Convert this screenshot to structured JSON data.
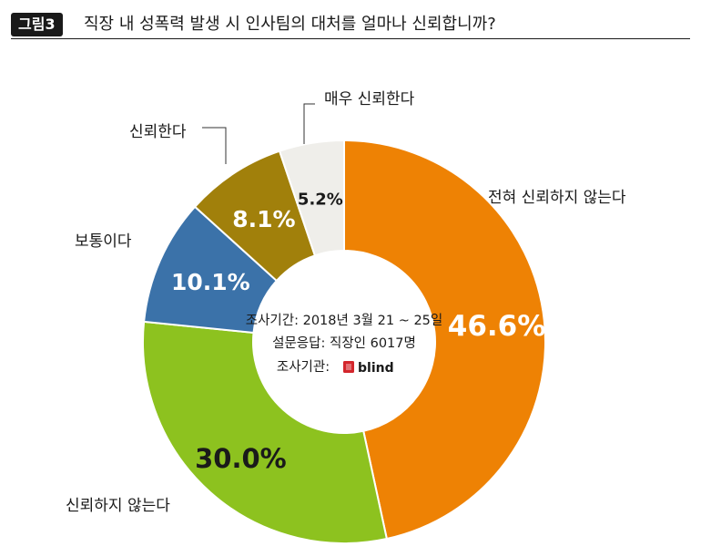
{
  "header": {
    "badge": "그림3",
    "title": "직장 내 성폭력 발생 시 인사팀의 대처를 얼마나 신뢰합니까?"
  },
  "center": {
    "line1": "조사기간: 2018년 3월 21 ~ 25일",
    "line2": "설문응답: 직장인 6017명",
    "line3_label": "조사기관:",
    "brand": "blind"
  },
  "chart_data": {
    "type": "pie",
    "title": "직장 내 성폭력 발생 시 인사팀의 대처를 얼마나 신뢰합니까?",
    "donut": true,
    "categories": [
      "전혀 신뢰하지 않는다",
      "신뢰하지 않는다",
      "보통이다",
      "신뢰한다",
      "매우 신뢰한다"
    ],
    "values": [
      46.6,
      30.0,
      10.1,
      8.1,
      5.2
    ],
    "value_labels": [
      "46.6%",
      "30.0%",
      "10.1%",
      "8.1%",
      "5.2%"
    ],
    "colors": [
      "#EE8204",
      "#8DC21F",
      "#3B72A9",
      "#A1800B",
      "#EFEEEA"
    ],
    "label_colors": [
      "#ffffff",
      "#1a1a1a",
      "#ffffff",
      "#ffffff",
      "#1a1a1a"
    ]
  }
}
